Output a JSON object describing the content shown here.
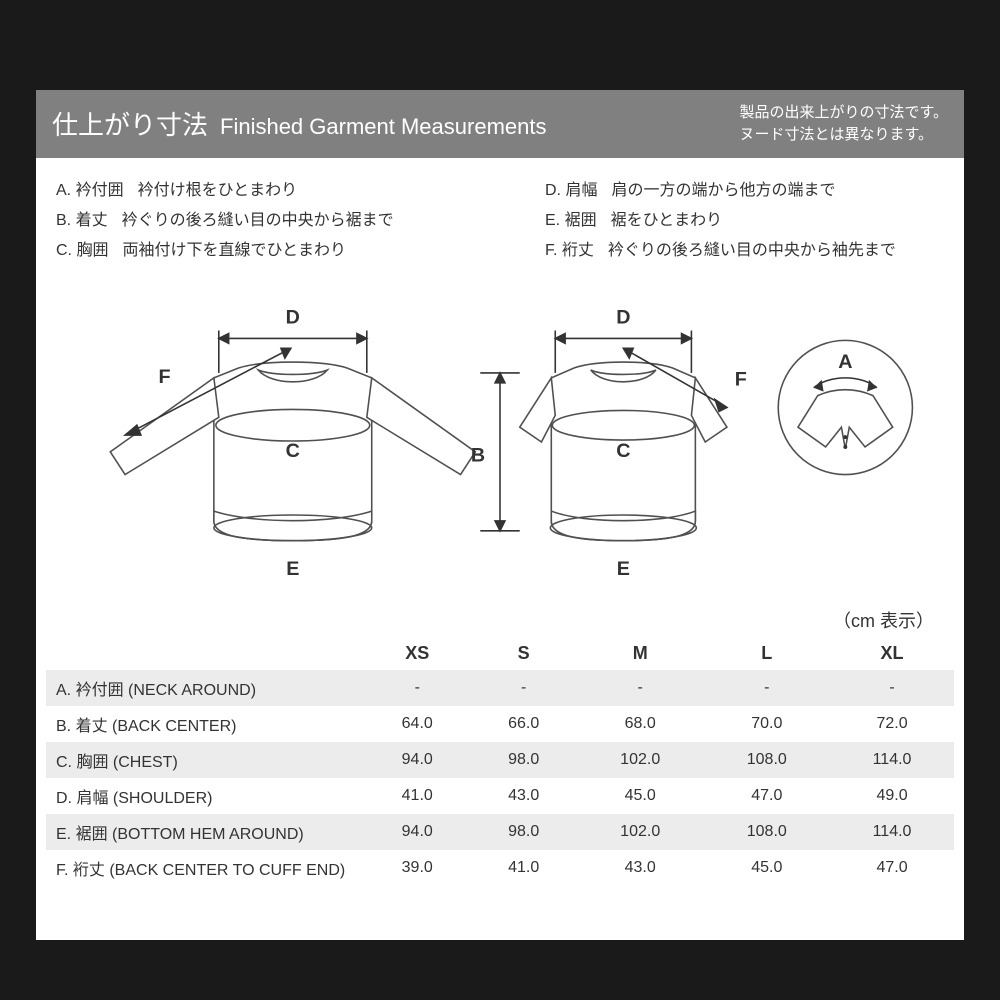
{
  "colors": {
    "page_bg": "#1a1a1a",
    "paper_bg": "#ffffff",
    "header_bg": "#808080",
    "header_text": "#ffffff",
    "text": "#333333",
    "stripe": "#ececec",
    "diagram_line": "#505050",
    "diagram_fill": "#ffffff"
  },
  "header": {
    "title_jp": "仕上がり寸法",
    "title_en": "Finished Garment Measurements",
    "note_line1": "製品の出来上がりの寸法です。",
    "note_line2": "ヌード寸法とは異なります。"
  },
  "definitions": {
    "left": [
      {
        "label": "A. 衿付囲",
        "text": "衿付け根をひとまわり"
      },
      {
        "label": "B. 着丈",
        "text": "衿ぐりの後ろ縫い目の中央から裾まで"
      },
      {
        "label": "C. 胸囲",
        "text": "両袖付け下を直線でひとまわり"
      }
    ],
    "right": [
      {
        "label": "D. 肩幅",
        "text": "肩の一方の端から他方の端まで"
      },
      {
        "label": "E. 裾囲",
        "text": "裾をひとまわり"
      },
      {
        "label": "F. 裄丈",
        "text": "衿ぐりの後ろ縫い目の中央から袖先まで"
      }
    ]
  },
  "diagram": {
    "labels": {
      "A": "A",
      "B": "B",
      "C": "C",
      "D": "D",
      "E": "E",
      "F": "F"
    },
    "line_width": 1.6,
    "font_size": 20
  },
  "units_label": "（cm 表示）",
  "table": {
    "columns": [
      "XS",
      "S",
      "M",
      "L",
      "XL"
    ],
    "rows": [
      {
        "label": "A. 衿付囲 (NECK AROUND)",
        "values": [
          "-",
          "-",
          "-",
          "-",
          "-"
        ],
        "stripe": true
      },
      {
        "label": "B. 着丈 (BACK CENTER)",
        "values": [
          "64.0",
          "66.0",
          "68.0",
          "70.0",
          "72.0"
        ],
        "stripe": false
      },
      {
        "label": "C. 胸囲 (CHEST)",
        "values": [
          "94.0",
          "98.0",
          "102.0",
          "108.0",
          "114.0"
        ],
        "stripe": true
      },
      {
        "label": "D. 肩幅 (SHOULDER)",
        "values": [
          "41.0",
          "43.0",
          "45.0",
          "47.0",
          "49.0"
        ],
        "stripe": false
      },
      {
        "label": "E. 裾囲 (BOTTOM HEM AROUND)",
        "values": [
          "94.0",
          "98.0",
          "102.0",
          "108.0",
          "114.0"
        ],
        "stripe": true
      },
      {
        "label": "F. 裄丈 (BACK CENTER TO CUFF END)",
        "values": [
          "39.0",
          "41.0",
          "43.0",
          "45.0",
          "47.0"
        ],
        "stripe": false
      }
    ]
  }
}
